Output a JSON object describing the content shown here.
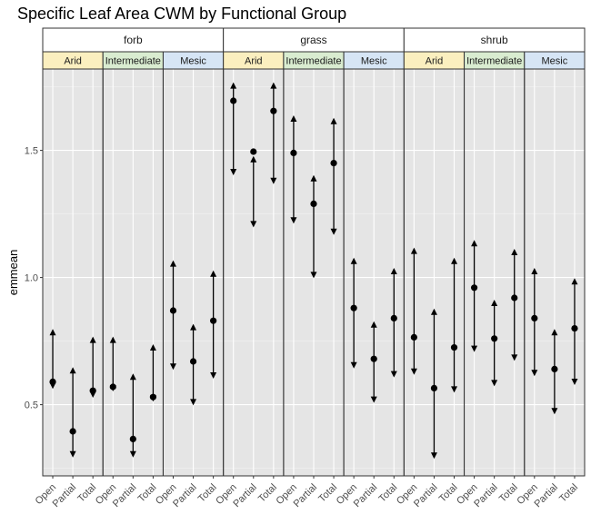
{
  "chart_data": {
    "type": "errorbar",
    "title": "Specific Leaf Area CWM by Functional Group",
    "ylabel": "emmean",
    "xlabel": "",
    "ylim": [
      0.22,
      1.82
    ],
    "yticks": [
      0.5,
      1.0,
      1.5
    ],
    "ytick_labels": [
      "0.5",
      "1.0",
      "1.5"
    ],
    "grid": true,
    "categories": [
      "Open",
      "Partial",
      "Total"
    ],
    "facets": [
      {
        "label": "forb",
        "panels": [
          {
            "label": "Arid",
            "color": "#fbefbf",
            "points": [
              {
                "cat": "Open",
                "est": 0.59,
                "lo": 0.58,
                "hi": 0.78
              },
              {
                "cat": "Partial",
                "est": 0.395,
                "lo": 0.31,
                "hi": 0.63
              },
              {
                "cat": "Total",
                "est": 0.555,
                "lo": 0.545,
                "hi": 0.75
              }
            ]
          },
          {
            "label": "Intermediate",
            "color": "#d9ecd0",
            "points": [
              {
                "cat": "Open",
                "est": 0.57,
                "lo": 0.57,
                "hi": 0.75
              },
              {
                "cat": "Partial",
                "est": 0.365,
                "lo": 0.31,
                "hi": 0.605
              },
              {
                "cat": "Total",
                "est": 0.53,
                "lo": 0.53,
                "hi": 0.72
              }
            ]
          },
          {
            "label": "Mesic",
            "color": "#d6e5f5",
            "points": [
              {
                "cat": "Open",
                "est": 0.87,
                "lo": 0.655,
                "hi": 1.05
              },
              {
                "cat": "Partial",
                "est": 0.67,
                "lo": 0.515,
                "hi": 0.8
              },
              {
                "cat": "Total",
                "est": 0.83,
                "lo": 0.62,
                "hi": 1.01
              }
            ]
          }
        ]
      },
      {
        "label": "grass",
        "panels": [
          {
            "label": "Arid",
            "color": "#fbefbf",
            "points": [
              {
                "cat": "Open",
                "est": 1.695,
                "lo": 1.42,
                "hi": 1.75
              },
              {
                "cat": "Partial",
                "est": 1.495,
                "lo": 1.215,
                "hi": 1.46
              },
              {
                "cat": "Total",
                "est": 1.655,
                "lo": 1.385,
                "hi": 1.75
              }
            ]
          },
          {
            "label": "Intermediate",
            "color": "#d9ecd0",
            "points": [
              {
                "cat": "Open",
                "est": 1.49,
                "lo": 1.23,
                "hi": 1.62
              },
              {
                "cat": "Partial",
                "est": 1.29,
                "lo": 1.015,
                "hi": 1.385
              },
              {
                "cat": "Total",
                "est": 1.45,
                "lo": 1.185,
                "hi": 1.61
              }
            ]
          },
          {
            "label": "Mesic",
            "color": "#d6e5f5",
            "points": [
              {
                "cat": "Open",
                "est": 0.88,
                "lo": 0.66,
                "hi": 1.06
              },
              {
                "cat": "Partial",
                "est": 0.68,
                "lo": 0.525,
                "hi": 0.81
              },
              {
                "cat": "Total",
                "est": 0.84,
                "lo": 0.625,
                "hi": 1.02
              }
            ]
          }
        ]
      },
      {
        "label": "shrub",
        "panels": [
          {
            "label": "Arid",
            "color": "#fbefbf",
            "points": [
              {
                "cat": "Open",
                "est": 0.765,
                "lo": 0.635,
                "hi": 1.1
              },
              {
                "cat": "Partial",
                "est": 0.565,
                "lo": 0.305,
                "hi": 0.86
              },
              {
                "cat": "Total",
                "est": 0.725,
                "lo": 0.565,
                "hi": 1.06
              }
            ]
          },
          {
            "label": "Intermediate",
            "color": "#d9ecd0",
            "points": [
              {
                "cat": "Open",
                "est": 0.96,
                "lo": 0.725,
                "hi": 1.13
              },
              {
                "cat": "Partial",
                "est": 0.76,
                "lo": 0.59,
                "hi": 0.895
              },
              {
                "cat": "Total",
                "est": 0.92,
                "lo": 0.69,
                "hi": 1.095
              }
            ]
          },
          {
            "label": "Mesic",
            "color": "#d6e5f5",
            "points": [
              {
                "cat": "Open",
                "est": 0.84,
                "lo": 0.63,
                "hi": 1.02
              },
              {
                "cat": "Partial",
                "est": 0.64,
                "lo": 0.48,
                "hi": 0.78
              },
              {
                "cat": "Total",
                "est": 0.8,
                "lo": 0.595,
                "hi": 0.98
              }
            ]
          }
        ]
      }
    ]
  }
}
